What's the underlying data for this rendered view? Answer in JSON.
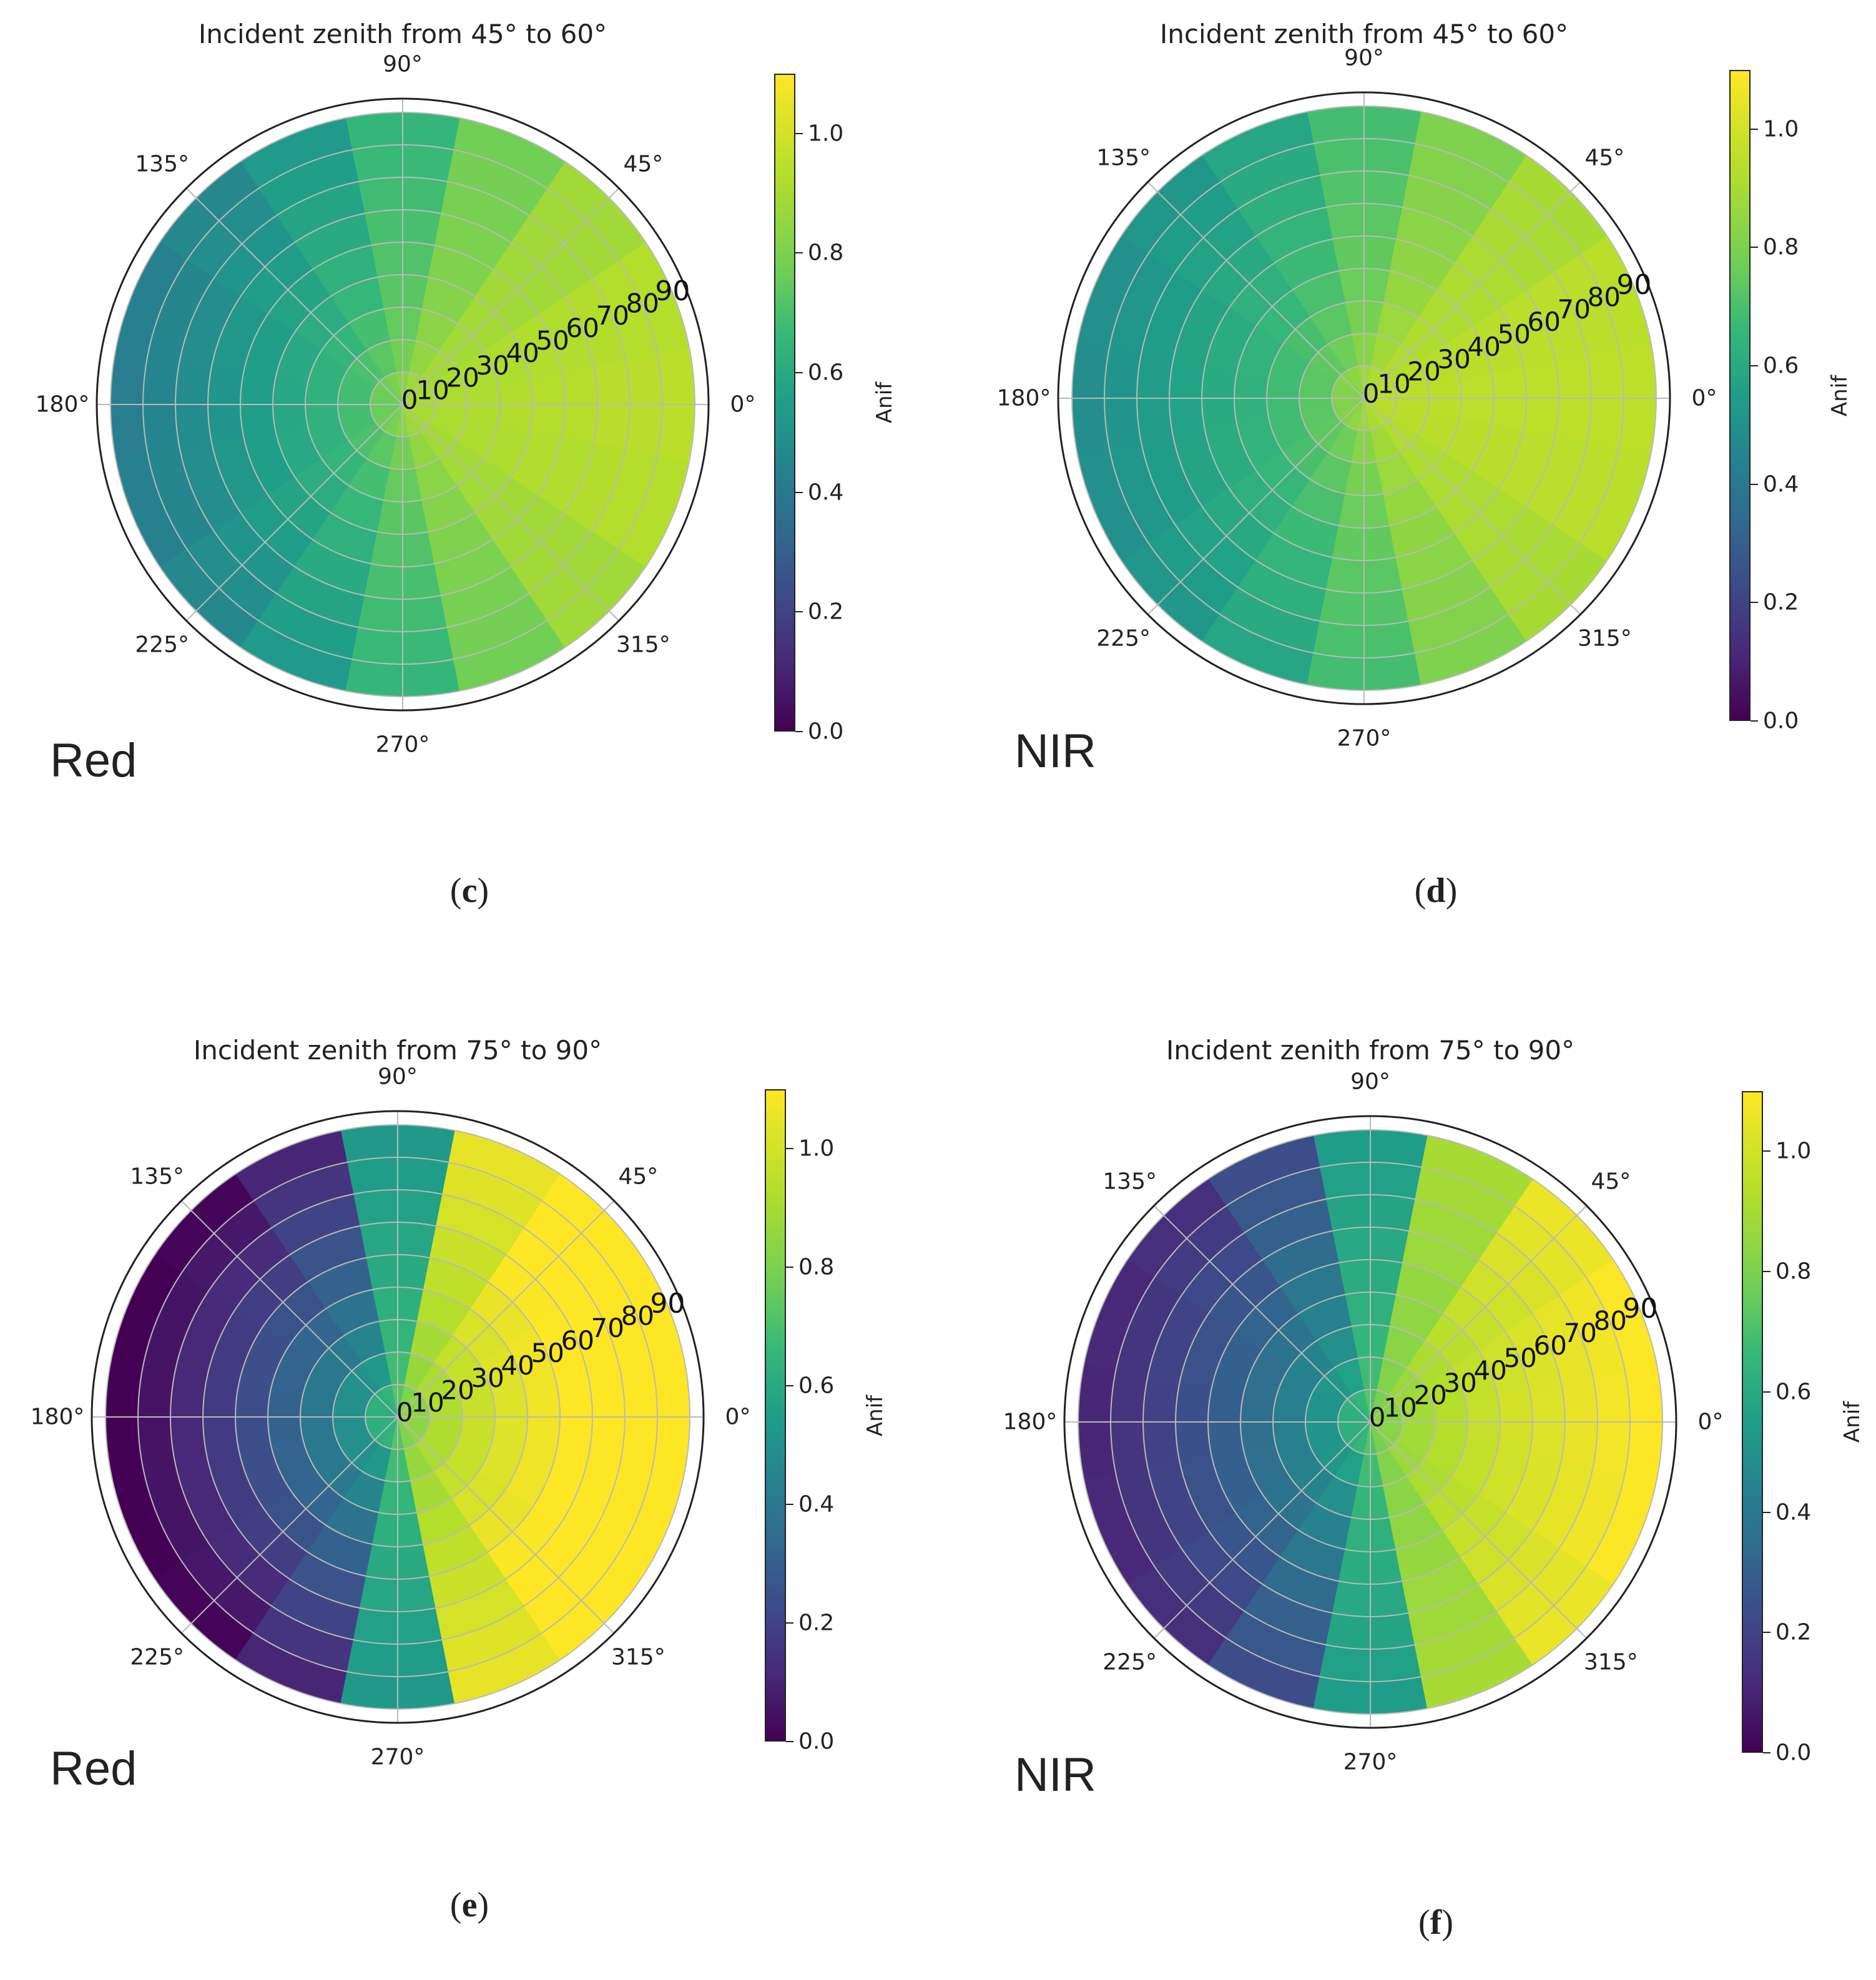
{
  "chart_data": [
    {
      "type": "heatmap",
      "subtype": "polar",
      "panel": "c",
      "title": "Incident zenith from 45° to 60°",
      "band": "Red",
      "caption_letter": "c",
      "colorbar_label": "Anif",
      "colorbar_range": [
        0,
        1.1
      ],
      "colorbar_ticks": [
        "0.0",
        "0.2",
        "0.4",
        "0.6",
        "0.8",
        "1.0"
      ],
      "angle_ticks": [
        "0°",
        "45°",
        "90°",
        "135°",
        "180°",
        "225°",
        "270°",
        "315°"
      ],
      "radial_ticks": [
        "0",
        "10",
        "20",
        "30",
        "40",
        "50",
        "60",
        "70",
        "80",
        "90"
      ],
      "radial_range": [
        0,
        90
      ],
      "azimuth_bin_deg": 22.5,
      "model": {
        "base": 0.72,
        "amp": 0.32,
        "sharp": 0.6,
        "growth": 0.55,
        "center": 0.95
      }
    },
    {
      "type": "heatmap",
      "subtype": "polar",
      "panel": "d",
      "title": "Incident zenith from 45° to 60°",
      "band": "NIR",
      "caption_letter": "d",
      "colorbar_label": "Anif",
      "colorbar_range": [
        0,
        1.1
      ],
      "colorbar_ticks": [
        "0.0",
        "0.2",
        "0.4",
        "0.6",
        "0.8",
        "1.0"
      ],
      "angle_ticks": [
        "0°",
        "45°",
        "90°",
        "135°",
        "180°",
        "225°",
        "270°",
        "315°"
      ],
      "radial_ticks": [
        "0",
        "10",
        "20",
        "30",
        "40",
        "50",
        "60",
        "70",
        "80",
        "90"
      ],
      "radial_range": [
        0,
        90
      ],
      "azimuth_bin_deg": 22.5,
      "model": {
        "base": 0.76,
        "amp": 0.28,
        "sharp": 0.6,
        "growth": 0.55,
        "center": 0.98
      }
    },
    {
      "type": "heatmap",
      "subtype": "polar",
      "panel": "e",
      "title": "Incident zenith from 75° to 90°",
      "band": "Red",
      "caption_letter": "e",
      "colorbar_label": "Anif",
      "colorbar_range": [
        0,
        1.1
      ],
      "colorbar_ticks": [
        "0.0",
        "0.2",
        "0.4",
        "0.6",
        "0.8",
        "1.0"
      ],
      "angle_ticks": [
        "0°",
        "45°",
        "90°",
        "135°",
        "180°",
        "225°",
        "270°",
        "315°"
      ],
      "radial_ticks": [
        "0",
        "10",
        "20",
        "30",
        "40",
        "50",
        "60",
        "70",
        "80",
        "90"
      ],
      "radial_range": [
        0,
        90
      ],
      "azimuth_bin_deg": 22.5,
      "model": {
        "base": 0.58,
        "amp": 0.62,
        "sharp": 1.4,
        "growth": 0.6,
        "center": 0.85
      }
    },
    {
      "type": "heatmap",
      "subtype": "polar",
      "panel": "f",
      "title": "Incident zenith from 75° to 90°",
      "band": "NIR",
      "caption_letter": "f",
      "colorbar_label": "Anif",
      "colorbar_range": [
        0,
        1.1
      ],
      "colorbar_ticks": [
        "0.0",
        "0.2",
        "0.4",
        "0.6",
        "0.8",
        "1.0"
      ],
      "angle_ticks": [
        "0°",
        "45°",
        "90°",
        "135°",
        "180°",
        "225°",
        "270°",
        "315°"
      ],
      "radial_ticks": [
        "0",
        "10",
        "20",
        "30",
        "40",
        "50",
        "60",
        "70",
        "80",
        "90"
      ],
      "radial_range": [
        0,
        90
      ],
      "azimuth_bin_deg": 22.5,
      "model": {
        "base": 0.6,
        "amp": 0.52,
        "sharp": 1.1,
        "growth": 0.55,
        "center": 0.85
      }
    }
  ]
}
